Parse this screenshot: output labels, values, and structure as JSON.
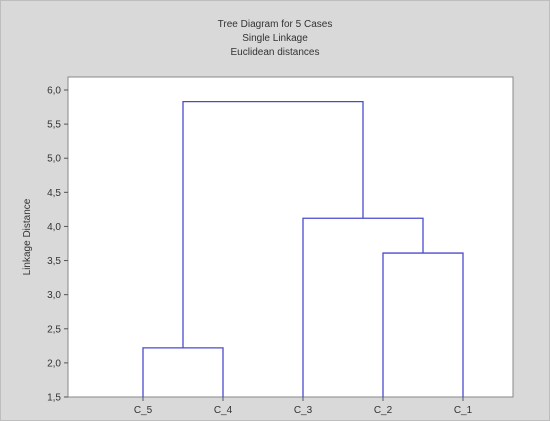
{
  "chart_data": {
    "type": "dendrogram",
    "title": "Tree Diagram for 5 Cases",
    "subtitle": [
      "Single Linkage",
      "Euclidean distances"
    ],
    "ylabel": "Linkage Distance",
    "xlabel": "",
    "ylim": [
      1.5,
      6.0
    ],
    "ytick_labels": [
      "1,5",
      "2,0",
      "2,5",
      "3,0",
      "3,5",
      "4,0",
      "4,5",
      "5,0",
      "5,5",
      "6,0"
    ],
    "grid": false,
    "leaves": [
      "C_5",
      "C_4",
      "C_3",
      "C_2",
      "C_1"
    ],
    "merges": [
      {
        "left": "C_5",
        "right": "C_4",
        "height": 2.22
      },
      {
        "left": "C_2",
        "right": "C_1",
        "height": 3.61
      },
      {
        "left": "C_3",
        "right": "C_2+C_1",
        "height": 4.12
      },
      {
        "left": "C_5+C_4",
        "right": "C_3+C_2+C_1",
        "height": 5.83
      }
    ]
  },
  "colors": {
    "background": "#d9d9d9",
    "plot_area": "#ffffff",
    "dendrogram_line": "#4a4ad0",
    "text": "#333333"
  }
}
